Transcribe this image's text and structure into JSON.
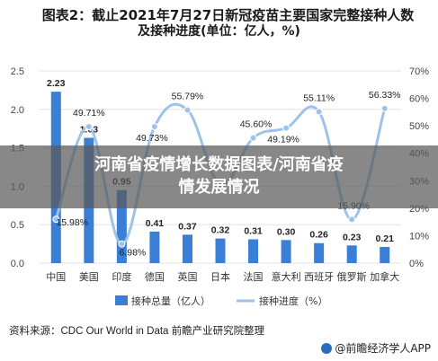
{
  "title_line1": "图表2：截止2021年7月27日新冠疫苗主要国家完整接种人数",
  "title_line2": "及接种进度(单位：亿人，%)",
  "overlay_text": "河南省疫情增长数据图表/河南省疫情发展情况",
  "source": "资料来源：CDC Our World in Data 前瞻产业研究院整理",
  "brand": "@前瞻经济学人APP",
  "colors": {
    "bar": "#3a7fd5",
    "line": "#9ec3ea",
    "grid": "#e3e3e3",
    "text": "#333333"
  },
  "chart_data": {
    "type": "bar+line",
    "categories": [
      "中国",
      "美国",
      "印度",
      "德国",
      "英国",
      "日本",
      "法国",
      "意大利",
      "西班牙",
      "俄罗斯",
      "加拿大"
    ],
    "series": [
      {
        "name": "接种总量（亿人）",
        "type": "bar",
        "axis": "left",
        "values": [
          2.23,
          1.63,
          0.95,
          0.41,
          0.37,
          0.32,
          0.31,
          0.3,
          0.26,
          0.23,
          0.21
        ],
        "labels": [
          "2.23",
          "1.63",
          "0.95",
          "0.41",
          "0.37",
          "0.32",
          "0.31",
          "0.30",
          "0.26",
          "0.23",
          "0.21"
        ]
      },
      {
        "name": "接种进度（%）",
        "type": "line",
        "axis": "right",
        "values": [
          15.98,
          49.71,
          6.98,
          49.73,
          55.79,
          28.5,
          45.6,
          49.19,
          55.11,
          15.9,
          56.33
        ],
        "labels": [
          "15.98%",
          "49.71%",
          "6.98%",
          "49.73%",
          "55.79%",
          "",
          "45.60%",
          "49.19%",
          "55.11%",
          "15.90%",
          "56.33%"
        ]
      }
    ],
    "y_left": {
      "lim": [
        0,
        2.5
      ],
      "ticks": [
        "0.0",
        "0.5",
        "1.0",
        "1.5",
        "2.0",
        "2.5"
      ]
    },
    "y_right": {
      "lim": [
        0,
        70
      ],
      "ticks": [
        "0%",
        "10%",
        "20%",
        "30%",
        "40%",
        "50%",
        "60%",
        "70%"
      ]
    },
    "legend": [
      "接种总量（亿人）",
      "接种进度（%）"
    ],
    "grid": true,
    "legend_position": "bottom"
  }
}
